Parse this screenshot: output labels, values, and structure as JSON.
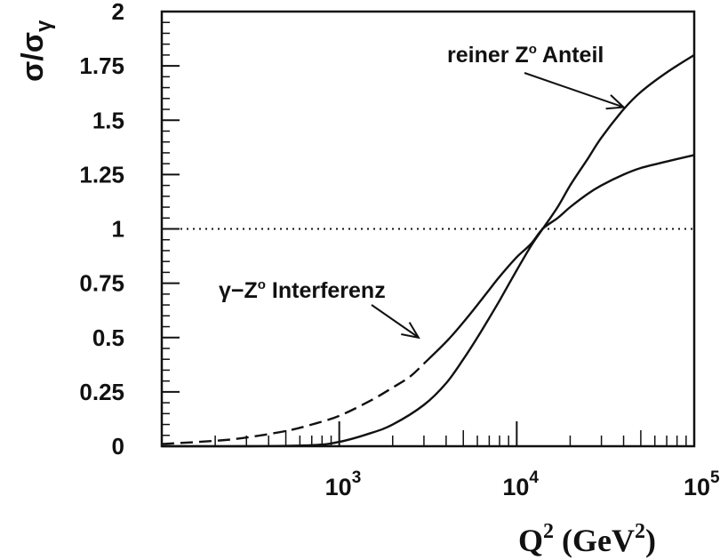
{
  "chart_data": {
    "type": "line",
    "x_scale": "log",
    "xlim": [
      100,
      100000
    ],
    "ylim": [
      0,
      2
    ],
    "grid": false,
    "xlabel": {
      "base": "Q",
      "sup": "2",
      "units_open": " (GeV",
      "units_sup": "2",
      "units_close": ")"
    },
    "ylabel": {
      "num": "σ/σ",
      "sub": "γ"
    },
    "y_ticks": [
      {
        "value": 0,
        "label": "0"
      },
      {
        "value": 0.25,
        "label": "0.25"
      },
      {
        "value": 0.5,
        "label": "0.5"
      },
      {
        "value": 0.75,
        "label": "0.75"
      },
      {
        "value": 1,
        "label": "1"
      },
      {
        "value": 1.25,
        "label": "1.25"
      },
      {
        "value": 1.5,
        "label": "1.5"
      },
      {
        "value": 1.75,
        "label": "1.75"
      },
      {
        "value": 2,
        "label": "2"
      }
    ],
    "x_ticks": [
      {
        "value": 1000,
        "base": "10",
        "exp": "3"
      },
      {
        "value": 10000,
        "base": "10",
        "exp": "4"
      },
      {
        "value": 100000,
        "base": "10",
        "exp": "5"
      }
    ],
    "reference_line": {
      "y": 1,
      "style": "dotted"
    },
    "series": [
      {
        "id": "pure_z",
        "style": "solid",
        "x": [
          100,
          300,
          700,
          1000,
          1500,
          2000,
          3000,
          4000,
          5000,
          6000,
          7000,
          8000,
          10000,
          12000,
          14000,
          17000,
          20000,
          25000,
          30000,
          40000,
          50000,
          70000,
          100000
        ],
        "y": [
          0.0,
          0.0,
          0.005,
          0.02,
          0.06,
          0.1,
          0.19,
          0.29,
          0.4,
          0.5,
          0.59,
          0.67,
          0.81,
          0.92,
          1.0,
          1.1,
          1.2,
          1.32,
          1.42,
          1.55,
          1.63,
          1.72,
          1.8
        ]
      },
      {
        "id": "interference",
        "style": "mixed",
        "dash_below": 3000,
        "x": [
          100,
          200,
          300,
          500,
          700,
          1000,
          1500,
          2000,
          2500,
          3000,
          4000,
          5000,
          6000,
          7000,
          8000,
          10000,
          12000,
          14000,
          17000,
          20000,
          25000,
          30000,
          40000,
          50000,
          70000,
          100000
        ],
        "y": [
          0.01,
          0.025,
          0.04,
          0.07,
          0.1,
          0.14,
          0.21,
          0.27,
          0.32,
          0.38,
          0.48,
          0.57,
          0.65,
          0.72,
          0.78,
          0.87,
          0.93,
          1.0,
          1.05,
          1.1,
          1.16,
          1.2,
          1.25,
          1.28,
          1.31,
          1.34
        ]
      }
    ],
    "annotations": [
      {
        "id": "pure_z",
        "prefix": "reiner Z",
        "sup": "o",
        "suffix": " Anteil",
        "arrow_to": {
          "x": 40000,
          "y": 1.56
        }
      },
      {
        "id": "interference",
        "prefix": "γ−Z",
        "sup": "o",
        "suffix": " Interferenz",
        "arrow_to": {
          "x": 2800,
          "y": 0.5
        }
      }
    ]
  }
}
